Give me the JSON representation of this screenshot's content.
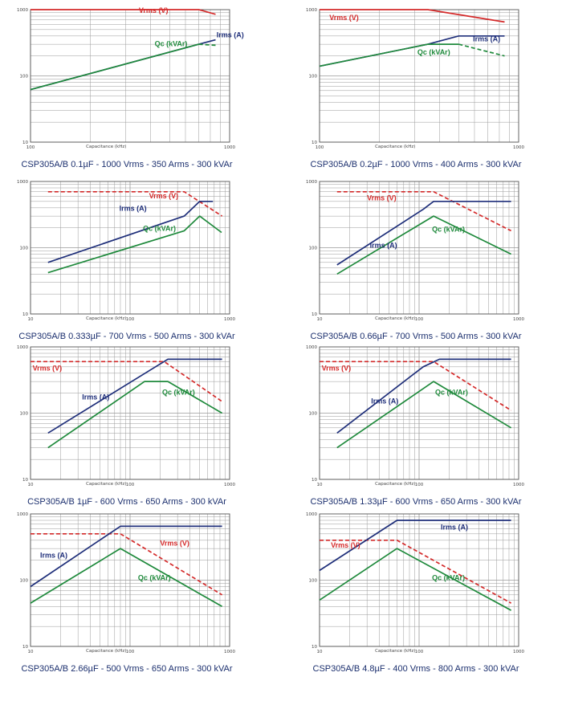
{
  "colors": {
    "vrms": "#d42a2a",
    "irms": "#1f2f7a",
    "qc": "#1f8a3c",
    "grid": "#9a9a9a"
  },
  "axes": {
    "y_ticks": [
      "1000",
      "100",
      "10"
    ],
    "x_ticks": [
      "100",
      "1000"
    ],
    "xlabel": "Capacitance (kHz)"
  },
  "chart_data": [
    {
      "type": "line",
      "caption": "CSP305A/B 0.1µF - 1000 Vrms - 350 Arms - 300 kVAr",
      "xscale": "log",
      "yscale": "log",
      "xlim": [
        100,
        1000
      ],
      "ylim": [
        10,
        1000
      ],
      "series": [
        {
          "name": "Vrms (V)",
          "style": "solid",
          "x": [
            100,
            700,
            850
          ],
          "y": [
            1000,
            1000,
            850
          ]
        },
        {
          "name": "Irms (A)",
          "style": "solid",
          "x": [
            100,
            700,
            850
          ],
          "y": [
            62,
            300,
            350
          ]
        },
        {
          "name": "Qc (kVAr)",
          "style": "solid",
          "x": [
            100,
            700
          ],
          "y": [
            62,
            300
          ]
        },
        {
          "name": "",
          "style": "dashed",
          "x": [
            700,
            850
          ],
          "y": [
            300,
            290
          ]
        }
      ],
      "labels": [
        {
          "text": "Vrms (V)",
          "series": 0,
          "x": 350,
          "y": 900
        },
        {
          "text": "Irms (A)",
          "series": 1,
          "x": 860,
          "y": 380
        },
        {
          "text": "Qc (kVAr)",
          "series": 2,
          "x": 420,
          "y": 280
        }
      ]
    },
    {
      "type": "line",
      "caption": "CSP305A/B 0.2µF - 1000 Vrms - 400 Arms - 300 kVAr",
      "xscale": "log",
      "yscale": "log",
      "xlim": [
        100,
        1000
      ],
      "ylim": [
        10,
        1000
      ],
      "series": [
        {
          "name": "Vrms (V)",
          "style": "solid",
          "x": [
            100,
            350,
            850
          ],
          "y": [
            1000,
            1000,
            650
          ]
        },
        {
          "name": "Irms (A)",
          "style": "solid",
          "x": [
            100,
            350,
            500,
            850
          ],
          "y": [
            140,
            300,
            400,
            400
          ]
        },
        {
          "name": "Qc (kVAr)",
          "style": "solid",
          "x": [
            100,
            350,
            500
          ],
          "y": [
            140,
            300,
            300
          ]
        },
        {
          "name": "",
          "style": "dashed",
          "x": [
            500,
            850
          ],
          "y": [
            300,
            200
          ]
        }
      ],
      "labels": [
        {
          "text": "Vrms (V)",
          "series": 0,
          "x": 112,
          "y": 700
        },
        {
          "text": "Irms (A)",
          "series": 1,
          "x": 590,
          "y": 330
        },
        {
          "text": "Qc (kVAr)",
          "series": 2,
          "x": 310,
          "y": 210
        }
      ]
    },
    {
      "type": "line",
      "caption": "CSP305A/B 0.333µF - 700 Vrms - 500 Arms - 300 kVAr",
      "xscale": "log",
      "yscale": "log",
      "xlim": [
        10,
        1000
      ],
      "ylim": [
        10,
        1000
      ],
      "series": [
        {
          "name": "Vrms (V)",
          "style": "dashed",
          "x": [
            15,
            350,
            840
          ],
          "y": [
            700,
            700,
            300
          ]
        },
        {
          "name": "Irms (A)",
          "style": "solid",
          "x": [
            15,
            350,
            500,
            680
          ],
          "y": [
            60,
            300,
            500,
            500
          ]
        },
        {
          "name": "Qc (kVAr)",
          "style": "solid",
          "x": [
            15,
            350,
            500,
            830
          ],
          "y": [
            42,
            180,
            300,
            170
          ]
        }
      ],
      "labels": [
        {
          "text": "Vrms (V)",
          "series": 0,
          "x": 155,
          "y": 560
        },
        {
          "text": "Irms (A)",
          "series": 1,
          "x": 78,
          "y": 360
        },
        {
          "text": "Qc (kVAr)",
          "series": 2,
          "x": 135,
          "y": 180
        }
      ]
    },
    {
      "type": "line",
      "caption": "CSP305A/B 0.66µF - 700 Vrms - 500 Arms - 300 kVAr",
      "xscale": "log",
      "yscale": "log",
      "xlim": [
        10,
        1000
      ],
      "ylim": [
        10,
        1000
      ],
      "series": [
        {
          "name": "Vrms (V)",
          "style": "dashed",
          "x": [
            15,
            140,
            840
          ],
          "y": [
            700,
            700,
            180
          ]
        },
        {
          "name": "Irms (A)",
          "style": "solid",
          "x": [
            15,
            110,
            140,
            840
          ],
          "y": [
            55,
            380,
            500,
            500
          ]
        },
        {
          "name": "Qc (kVAr)",
          "style": "solid",
          "x": [
            15,
            140,
            840
          ],
          "y": [
            40,
            300,
            80
          ]
        }
      ],
      "labels": [
        {
          "text": "Vrms (V)",
          "series": 0,
          "x": 30,
          "y": 520
        },
        {
          "text": "Irms (A)",
          "series": 1,
          "x": 32,
          "y": 100
        },
        {
          "text": "Qc (kVAr)",
          "series": 2,
          "x": 135,
          "y": 175
        }
      ]
    },
    {
      "type": "line",
      "caption": "CSP305A/B 1µF - 600 Vrms - 650 Arms - 300 kVAr",
      "xscale": "log",
      "yscale": "log",
      "xlim": [
        10,
        1000
      ],
      "ylim": [
        10,
        1000
      ],
      "series": [
        {
          "name": "Vrms (V)",
          "style": "dashed",
          "x": [
            10,
            220,
            840
          ],
          "y": [
            600,
            600,
            150
          ]
        },
        {
          "name": "Irms (A)",
          "style": "solid",
          "x": [
            15,
            180,
            240,
            840
          ],
          "y": [
            50,
            500,
            650,
            650
          ]
        },
        {
          "name": "Qc (kVAr)",
          "style": "solid",
          "x": [
            15,
            140,
            240,
            840
          ],
          "y": [
            30,
            300,
            300,
            100
          ]
        }
      ],
      "labels": [
        {
          "text": "Vrms (V)",
          "series": 0,
          "x": 10.5,
          "y": 440
        },
        {
          "text": "Irms (A)",
          "series": 1,
          "x": 33,
          "y": 160
        },
        {
          "text": "Qc (kVAr)",
          "series": 2,
          "x": 210,
          "y": 190
        }
      ]
    },
    {
      "type": "line",
      "caption": "CSP305A/B 1.33µF - 600 Vrms - 650 Arms - 300 kVAr",
      "xscale": "log",
      "yscale": "log",
      "xlim": [
        10,
        1000
      ],
      "ylim": [
        10,
        1000
      ],
      "series": [
        {
          "name": "Vrms (V)",
          "style": "dashed",
          "x": [
            10,
            140,
            840
          ],
          "y": [
            600,
            600,
            110
          ]
        },
        {
          "name": "Irms (A)",
          "style": "solid",
          "x": [
            15,
            110,
            160,
            840
          ],
          "y": [
            50,
            500,
            650,
            650
          ]
        },
        {
          "name": "Qc (kVAr)",
          "style": "solid",
          "x": [
            15,
            140,
            840
          ],
          "y": [
            30,
            300,
            60
          ]
        }
      ],
      "labels": [
        {
          "text": "Vrms (V)",
          "series": 0,
          "x": 10.5,
          "y": 440
        },
        {
          "text": "Irms (A)",
          "series": 1,
          "x": 33,
          "y": 140
        },
        {
          "text": "Qc (kVAr)",
          "series": 2,
          "x": 145,
          "y": 190
        }
      ]
    },
    {
      "type": "line",
      "caption": "CSP305A/B 2.66µF - 500 Vrms - 650 Arms - 300 kVAr",
      "xscale": "log",
      "yscale": "log",
      "xlim": [
        10,
        1000
      ],
      "ylim": [
        10,
        1000
      ],
      "series": [
        {
          "name": "Vrms (V)",
          "style": "dashed",
          "x": [
            10,
            80,
            840
          ],
          "y": [
            500,
            500,
            60
          ]
        },
        {
          "name": "Irms (A)",
          "style": "solid",
          "x": [
            10,
            80,
            840
          ],
          "y": [
            80,
            650,
            650
          ]
        },
        {
          "name": "Qc (kVAr)",
          "style": "solid",
          "x": [
            10,
            80,
            840
          ],
          "y": [
            45,
            300,
            40
          ]
        }
      ],
      "labels": [
        {
          "text": "Irms (A)",
          "series": 1,
          "x": 12.5,
          "y": 220
        },
        {
          "text": "Vrms (V)",
          "series": 0,
          "x": 200,
          "y": 330
        },
        {
          "text": "Qc (kVAr)",
          "series": 2,
          "x": 120,
          "y": 100
        }
      ]
    },
    {
      "type": "line",
      "caption": "CSP305A/B 4.8µF - 400 Vrms - 800 Arms - 300 kVAr",
      "xscale": "log",
      "yscale": "log",
      "xlim": [
        10,
        1000
      ],
      "ylim": [
        10,
        1000
      ],
      "series": [
        {
          "name": "Vrms (V)",
          "style": "dashed",
          "x": [
            10,
            60,
            840
          ],
          "y": [
            400,
            400,
            45
          ]
        },
        {
          "name": "Irms (A)",
          "style": "solid",
          "x": [
            10,
            60,
            840
          ],
          "y": [
            140,
            800,
            800
          ]
        },
        {
          "name": "Qc (kVAr)",
          "style": "solid",
          "x": [
            10,
            60,
            840
          ],
          "y": [
            50,
            300,
            35
          ]
        }
      ],
      "labels": [
        {
          "text": "Irms (A)",
          "series": 1,
          "x": 165,
          "y": 580
        },
        {
          "text": "Vrms (V)",
          "series": 0,
          "x": 13,
          "y": 310
        },
        {
          "text": "Qc (kVAr)",
          "series": 2,
          "x": 135,
          "y": 100
        }
      ]
    }
  ]
}
